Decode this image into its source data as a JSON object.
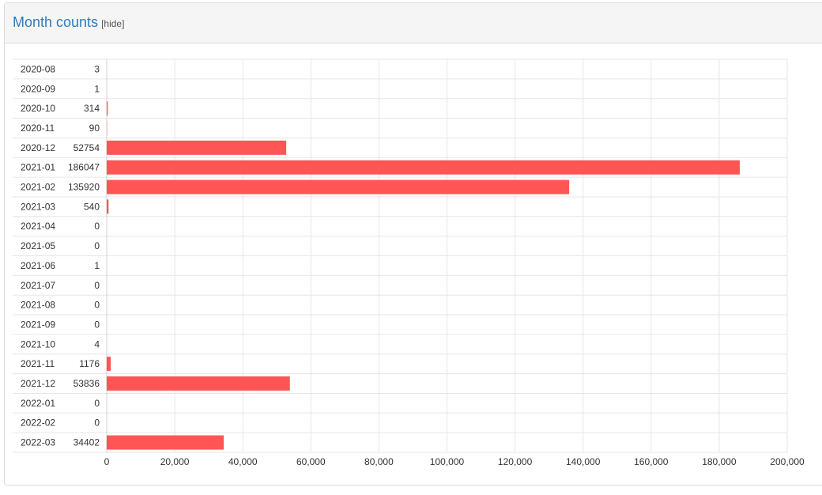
{
  "header": {
    "title": "Month counts",
    "hide_label": "[hide]"
  },
  "chart_data": {
    "type": "bar",
    "orientation": "horizontal",
    "categories": [
      "2020-08",
      "2020-09",
      "2020-10",
      "2020-11",
      "2020-12",
      "2021-01",
      "2021-02",
      "2021-03",
      "2021-04",
      "2021-05",
      "2021-06",
      "2021-07",
      "2021-08",
      "2021-09",
      "2021-10",
      "2021-11",
      "2021-12",
      "2022-01",
      "2022-02",
      "2022-03"
    ],
    "values": [
      3,
      1,
      314,
      90,
      52754,
      186047,
      135920,
      540,
      0,
      0,
      1,
      0,
      0,
      0,
      4,
      1176,
      53836,
      0,
      0,
      34402
    ],
    "value_labels": [
      "3",
      "1",
      "314",
      "90",
      "52754",
      "186047",
      "135920",
      "540",
      "0",
      "0",
      "1",
      "0",
      "0",
      "0",
      "4",
      "1176",
      "53836",
      "0",
      "0",
      "34402"
    ],
    "xlim": [
      0,
      200000
    ],
    "xticks": [
      0,
      20000,
      40000,
      60000,
      80000,
      100000,
      120000,
      140000,
      160000,
      180000,
      200000
    ],
    "xtick_labels": [
      "0",
      "20,000",
      "40,000",
      "60,000",
      "80,000",
      "100,000",
      "120,000",
      "140,000",
      "160,000",
      "180,000",
      "200,000"
    ],
    "grid": true,
    "bar_color": "#ff5555",
    "grid_color": "#e6e6e6"
  }
}
